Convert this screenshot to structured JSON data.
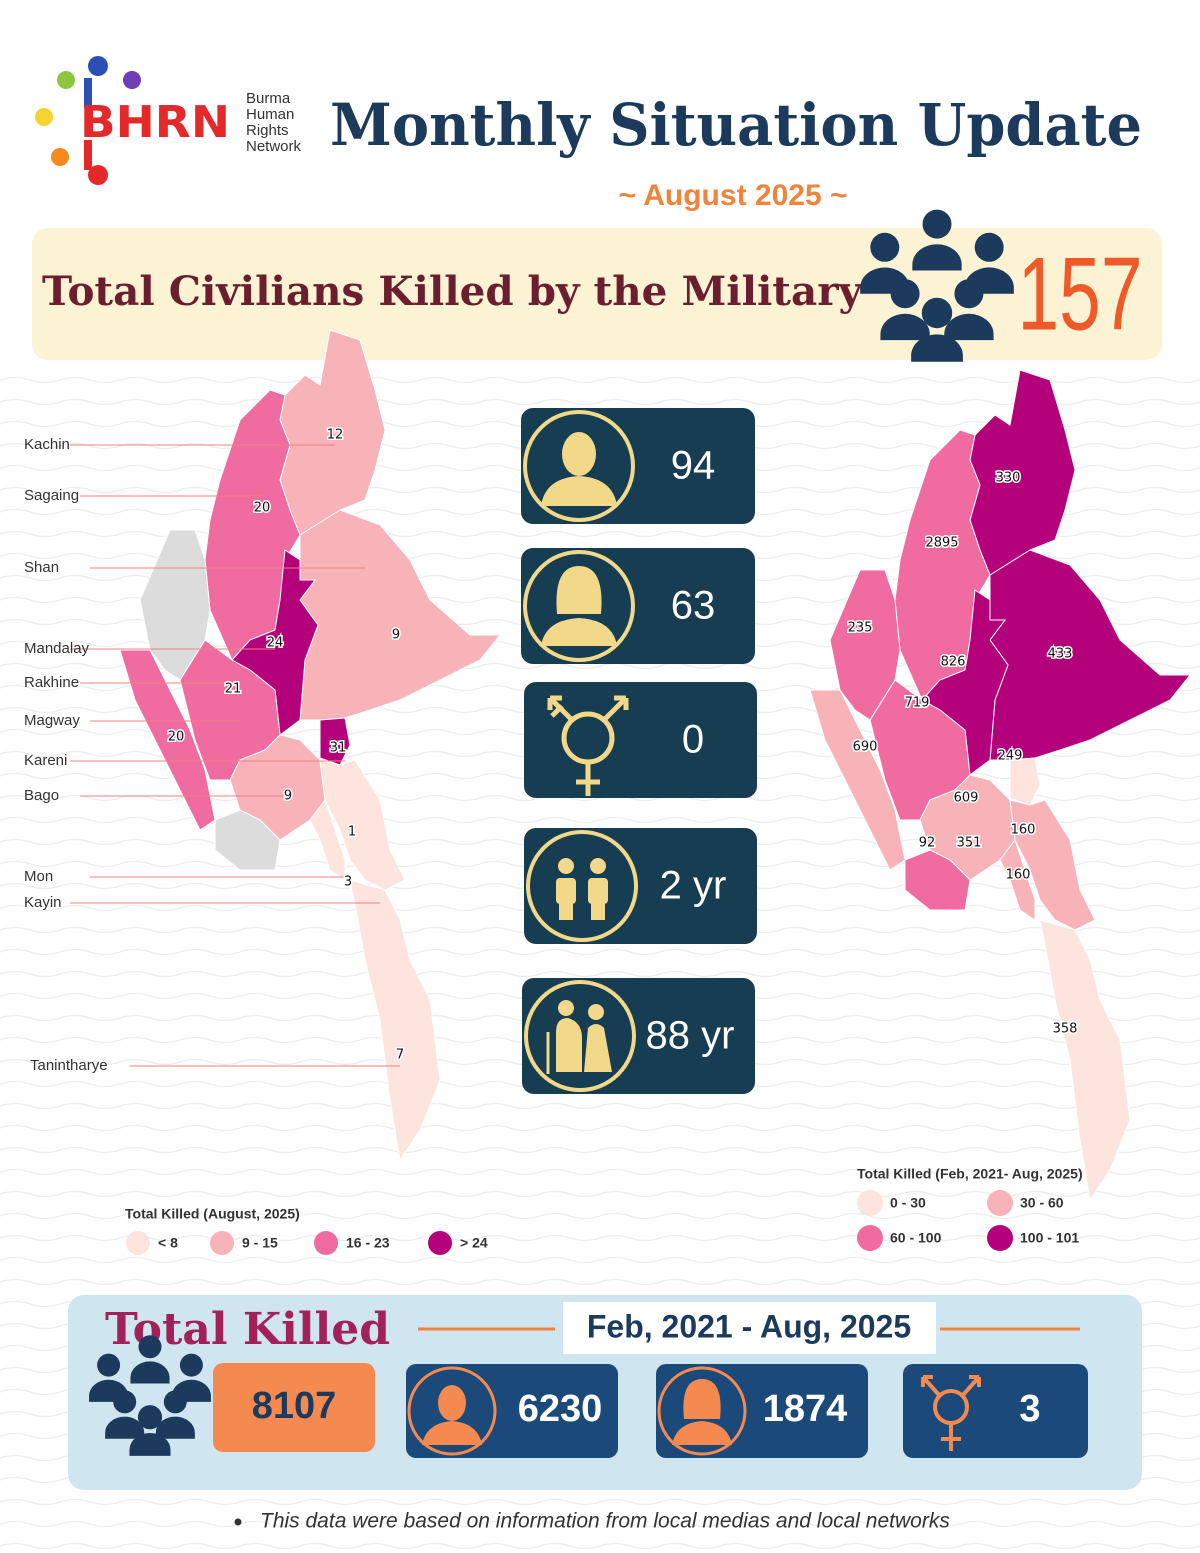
{
  "header": {
    "logo": {
      "abbr": "BHRN",
      "name_lines": [
        "Burma",
        "Human",
        "Rights",
        "Network"
      ]
    },
    "title": "Monthly Situation Update",
    "subtitle": "~ August 2025 ~"
  },
  "banner": {
    "title": "Total Civilians Killed by the Military",
    "total": 157
  },
  "monthly_map": {
    "regions": [
      {
        "name": "Kachin",
        "value": 12
      },
      {
        "name": "Sagaing",
        "value": 20
      },
      {
        "name": "Shan",
        "value": 9
      },
      {
        "name": "Mandalay",
        "value": 24
      },
      {
        "name": "Rakhine",
        "value": 20
      },
      {
        "name": "Magway",
        "value": 21
      },
      {
        "name": "Kareni",
        "value": 31
      },
      {
        "name": "Bago",
        "value": 9
      },
      {
        "name": "Mon",
        "value": 3
      },
      {
        "name": "Kayin",
        "value": 1
      },
      {
        "name": "Tanintharye",
        "value": 7
      }
    ],
    "legend": {
      "title": "Total Killed (August, 2025)",
      "items": [
        "< 8",
        "9 - 15",
        "16 - 23",
        "> 24"
      ]
    }
  },
  "stats": {
    "men": 94,
    "women": 63,
    "transgender": 0,
    "youngest": "2 yr",
    "oldest": "88 yr"
  },
  "cumulative_map": {
    "values": [
      330,
      2895,
      235,
      826,
      433,
      719,
      690,
      249,
      609,
      160,
      92,
      351,
      160,
      358
    ],
    "legend": {
      "title": "Total Killed (Feb, 2021- Aug, 2025)",
      "items": [
        "0 - 30",
        "30 - 60",
        "60 - 100",
        "100 - 101"
      ]
    }
  },
  "total_killed": {
    "title": "Total Killed",
    "period": "Feb, 2021 - Aug, 2025",
    "total": 8107,
    "male": 6230,
    "female": 1874,
    "transgender": 3
  },
  "footnote": "This data were based on information from local medias and local networks"
}
